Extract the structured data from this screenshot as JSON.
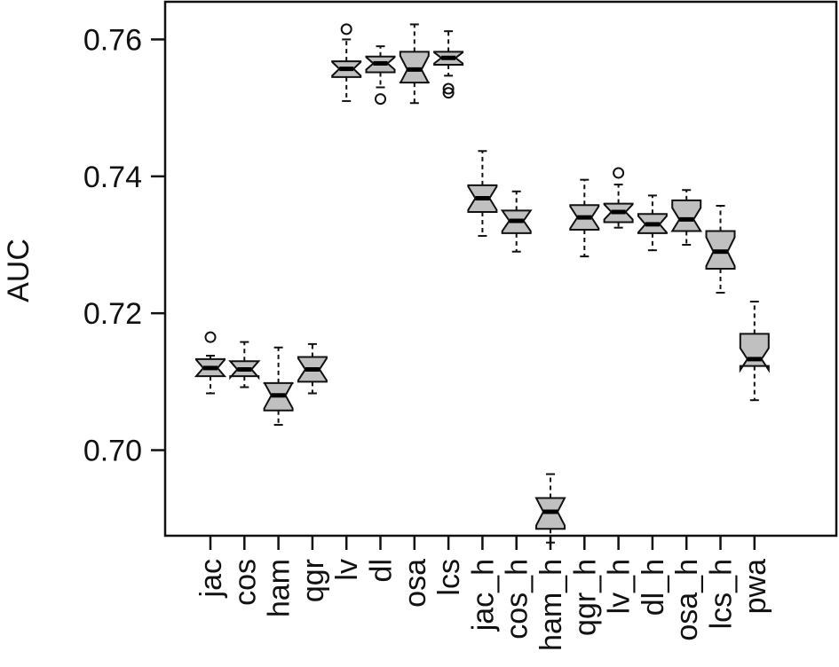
{
  "chart_data": {
    "type": "boxplot",
    "title": "",
    "xlabel": "",
    "ylabel": "AUC",
    "ylim": [
      0.6875,
      0.7655
    ],
    "yticks": [
      "0.70",
      "0.72",
      "0.74",
      "0.76"
    ],
    "notched": true,
    "box_fill": "#c0c0c0",
    "categories": [
      "jac",
      "cos",
      "ham",
      "qgr",
      "lv",
      "dl",
      "osa",
      "lcs",
      "jac_h",
      "cos_h",
      "ham_h",
      "qgr_h",
      "lv_h",
      "dl_h",
      "osa_h",
      "lcs_h",
      "pwa"
    ],
    "boxes": [
      {
        "whislo": 0.7083,
        "q1": 0.7108,
        "med": 0.712,
        "q3": 0.7133,
        "whishi": 0.7138,
        "notch_half": 0.0012,
        "outliers": [
          0.7165
        ]
      },
      {
        "whislo": 0.7092,
        "q1": 0.7108,
        "med": 0.7118,
        "q3": 0.713,
        "whishi": 0.7158,
        "notch_half": 0.0012,
        "outliers": []
      },
      {
        "whislo": 0.7037,
        "q1": 0.7058,
        "med": 0.708,
        "q3": 0.7098,
        "whishi": 0.715,
        "notch_half": 0.0019,
        "outliers": []
      },
      {
        "whislo": 0.7083,
        "q1": 0.71,
        "med": 0.7118,
        "q3": 0.7136,
        "whishi": 0.7155,
        "notch_half": 0.0016,
        "outliers": []
      },
      {
        "whislo": 0.751,
        "q1": 0.7545,
        "med": 0.7557,
        "q3": 0.7568,
        "whishi": 0.76,
        "notch_half": 0.001,
        "outliers": [
          0.7615
        ]
      },
      {
        "whislo": 0.753,
        "q1": 0.7552,
        "med": 0.7565,
        "q3": 0.7575,
        "whishi": 0.759,
        "notch_half": 0.0009,
        "outliers": [
          0.7513
        ]
      },
      {
        "whislo": 0.7507,
        "q1": 0.7537,
        "med": 0.7556,
        "q3": 0.7582,
        "whishi": 0.7622,
        "notch_half": 0.002,
        "outliers": []
      },
      {
        "whislo": 0.7547,
        "q1": 0.7563,
        "med": 0.7573,
        "q3": 0.7582,
        "whishi": 0.7612,
        "notch_half": 0.0008,
        "outliers": [
          0.7522,
          0.7528
        ]
      },
      {
        "whislo": 0.7313,
        "q1": 0.7348,
        "med": 0.7368,
        "q3": 0.7387,
        "whishi": 0.7437,
        "notch_half": 0.0017,
        "outliers": []
      },
      {
        "whislo": 0.729,
        "q1": 0.7317,
        "med": 0.7335,
        "q3": 0.735,
        "whishi": 0.7378,
        "notch_half": 0.0015,
        "outliers": []
      },
      {
        "whislo": 0.6865,
        "q1": 0.6885,
        "med": 0.691,
        "q3": 0.693,
        "whishi": 0.6965,
        "notch_half": 0.002,
        "outliers": []
      },
      {
        "whislo": 0.7283,
        "q1": 0.7322,
        "med": 0.734,
        "q3": 0.7358,
        "whishi": 0.7395,
        "notch_half": 0.0016,
        "outliers": []
      },
      {
        "whislo": 0.7325,
        "q1": 0.7333,
        "med": 0.7348,
        "q3": 0.736,
        "whishi": 0.7388,
        "notch_half": 0.0011,
        "outliers": [
          0.7405
        ]
      },
      {
        "whislo": 0.7292,
        "q1": 0.7317,
        "med": 0.733,
        "q3": 0.7345,
        "whishi": 0.7372,
        "notch_half": 0.0012,
        "outliers": []
      },
      {
        "whislo": 0.73,
        "q1": 0.732,
        "med": 0.7337,
        "q3": 0.7365,
        "whishi": 0.738,
        "notch_half": 0.0017,
        "outliers": []
      },
      {
        "whislo": 0.723,
        "q1": 0.7265,
        "med": 0.729,
        "q3": 0.732,
        "whishi": 0.7357,
        "notch_half": 0.0021,
        "outliers": []
      },
      {
        "whislo": 0.7073,
        "q1": 0.7123,
        "med": 0.7133,
        "q3": 0.717,
        "whishi": 0.7217,
        "notch_half": 0.0016,
        "outliers": []
      }
    ]
  }
}
